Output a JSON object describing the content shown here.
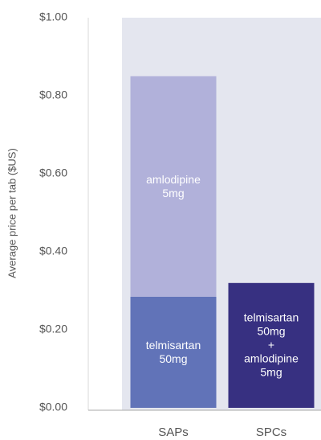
{
  "chart_data": {
    "type": "stacked_bar",
    "y_label": "Average price per tab ($US)",
    "categories": [
      "SAPs",
      "SPCs"
    ],
    "series": [
      {
        "name": "telmisartan\n50mg",
        "color": "#6173b8",
        "values": [
          0.285,
          null
        ]
      },
      {
        "name": "amlodipine\n5mg",
        "color": "#b1b1da",
        "values": [
          0.565,
          null
        ]
      },
      {
        "name": "telmisartan\n50mg\n+\namlodipine\n5mg",
        "color": "#373081",
        "values": [
          null,
          0.32
        ]
      }
    ],
    "ylim": [
      0,
      1
    ],
    "yticks": [
      {
        "value": 0,
        "label": "$0.00"
      },
      {
        "value": 0.2,
        "label": "$0.20"
      },
      {
        "value": 0.4,
        "label": "$0.40"
      },
      {
        "value": 0.6,
        "label": "$0.60"
      },
      {
        "value": 0.8,
        "label": "$0.80"
      },
      {
        "value": 1,
        "label": "$1.00"
      }
    ],
    "grid": false
  }
}
